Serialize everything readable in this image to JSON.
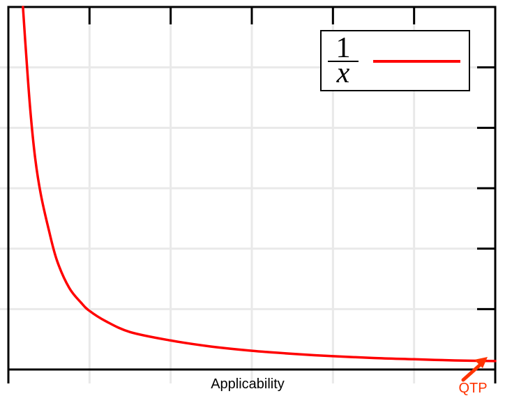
{
  "chart_data": {
    "type": "line",
    "title": "",
    "xlabel": "Applicability",
    "ylabel": "",
    "xlim": [
      0,
      6
    ],
    "ylim": [
      0,
      6
    ],
    "grid": true,
    "legend_position": "top-right",
    "series": [
      {
        "name": "1/x",
        "legend_numerator": "1",
        "legend_denominator": "x",
        "color": "#ff0000",
        "x": [
          0.18,
          0.22,
          0.27,
          0.33,
          0.4,
          0.5,
          0.6,
          0.75,
          0.9,
          1.0,
          1.2,
          1.5,
          2.0,
          2.5,
          3.0,
          3.5,
          4.0,
          4.5,
          5.0,
          5.5,
          6.0
        ],
        "y": [
          6.0,
          5.2,
          4.3,
          3.5,
          2.9,
          2.3,
          1.8,
          1.35,
          1.1,
          0.97,
          0.8,
          0.62,
          0.48,
          0.38,
          0.31,
          0.26,
          0.22,
          0.19,
          0.17,
          0.15,
          0.14
        ]
      }
    ],
    "annotations": [
      {
        "text": "QTP",
        "color": "#ff3300",
        "x": 6.0,
        "y": 0.14
      }
    ]
  }
}
